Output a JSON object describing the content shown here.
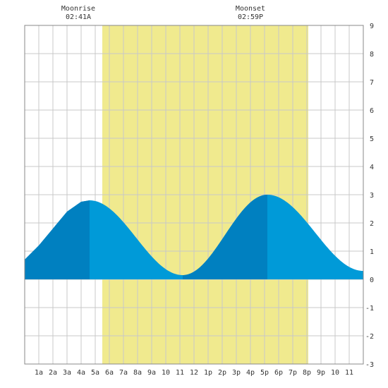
{
  "header": {
    "moonrise_label": "Moonrise",
    "moonrise_time": "02:41A",
    "moonset_label": "Moonset",
    "moonset_time": "02:59P"
  },
  "chart_data": {
    "type": "area",
    "title": "",
    "xlabel": "",
    "ylabel": "",
    "xlim": [
      0,
      24
    ],
    "ylim": [
      -3,
      9
    ],
    "grid": true,
    "y_ticks": [
      9,
      8,
      7,
      6,
      5,
      4,
      3,
      2,
      1,
      0,
      -1,
      -2,
      -3
    ],
    "x_tick_labels": [
      "1a",
      "2a",
      "3a",
      "4a",
      "5a",
      "6a",
      "7a",
      "8a",
      "9a",
      "10",
      "11",
      "12",
      "1p",
      "2p",
      "3p",
      "4p",
      "5p",
      "6p",
      "7p",
      "8p",
      "9p",
      "10",
      "11"
    ],
    "daylight_hours": [
      5.5,
      20.1
    ],
    "tide_extremes": [
      {
        "hour": 4.6,
        "height": 2.8,
        "kind": "high"
      },
      {
        "hour": 11.2,
        "height": 0.15,
        "kind": "low"
      },
      {
        "hour": 17.2,
        "height": 3.0,
        "kind": "high"
      },
      {
        "hour": 24.0,
        "height": 0.3,
        "kind": "low"
      }
    ],
    "series": [
      {
        "x": [
          0,
          1,
          2,
          3,
          4,
          4.6,
          5,
          6,
          7,
          8,
          9,
          10,
          11.2,
          12,
          13,
          14,
          15,
          16,
          17.2,
          18,
          19,
          20,
          21,
          22,
          23,
          24
        ],
        "y": [
          0.7,
          1.2,
          1.8,
          2.4,
          2.75,
          2.8,
          2.76,
          2.45,
          1.9,
          1.3,
          0.75,
          0.35,
          0.15,
          0.28,
          0.75,
          1.5,
          2.3,
          2.85,
          3.0,
          2.8,
          2.3,
          1.65,
          1.05,
          0.6,
          0.35,
          0.3
        ]
      }
    ],
    "colors": {
      "daylight": "#f0ea8e",
      "water_light": "#009ad8",
      "water_dark": "#0080c0",
      "grid": "#c8c8c8"
    }
  }
}
